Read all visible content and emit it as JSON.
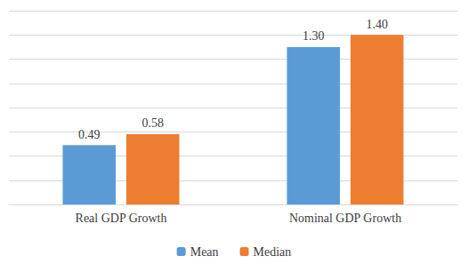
{
  "chart_data": {
    "type": "bar",
    "categories": [
      "Real GDP Growth",
      "Nominal GDP Growth"
    ],
    "series": [
      {
        "name": "Mean",
        "color": "#5b9bd5",
        "values": [
          0.49,
          1.3
        ],
        "value_labels": [
          "0.49",
          "1.30"
        ]
      },
      {
        "name": "Median",
        "color": "#ed7d31",
        "values": [
          0.58,
          1.4
        ],
        "value_labels": [
          "0.58",
          "1.40"
        ]
      }
    ],
    "ylim": [
      0,
      1.6
    ],
    "yticks": [
      0,
      0.2,
      0.4,
      0.6,
      0.8,
      1,
      1.2,
      1.4,
      1.6
    ],
    "grid": true,
    "legend": "bottom",
    "data_labels": true,
    "tick_labels": "x"
  }
}
